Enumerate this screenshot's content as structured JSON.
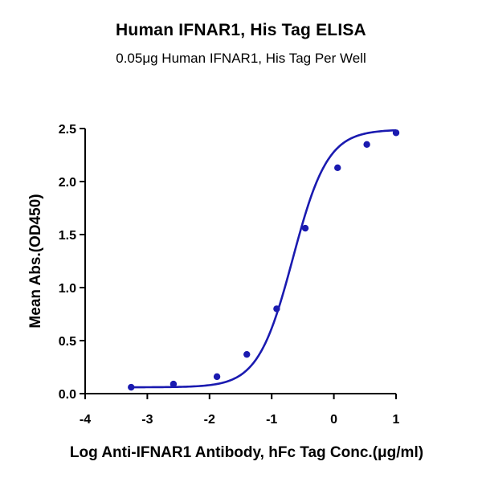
{
  "chart_data": {
    "type": "scatter",
    "title": "Human IFNAR1, His Tag ELISA",
    "subtitle": "0.05μg Human IFNAR1, His Tag Per Well",
    "xlabel": "Log Anti-IFNAR1 Antibody, hFc Tag Conc.(μg/ml)",
    "ylabel": "Mean Abs.(OD450)",
    "xlim": [
      -4,
      1
    ],
    "ylim": [
      0,
      2.5
    ],
    "x_ticks": [
      "-4",
      "-3",
      "-2",
      "-1",
      "0",
      "1"
    ],
    "y_ticks": [
      "0.0",
      "0.5",
      "1.0",
      "1.5",
      "2.0",
      "2.5"
    ],
    "grid": false,
    "series": [
      {
        "x": [
          -3.26,
          -2.58,
          -1.88,
          -1.4,
          -0.92,
          -0.46,
          0.06,
          0.53,
          1.0
        ],
        "y": [
          0.06,
          0.09,
          0.16,
          0.37,
          0.8,
          1.56,
          2.13,
          2.35,
          2.46
        ],
        "color": "#1a1ab0",
        "fit": "sigmoidal"
      }
    ]
  }
}
